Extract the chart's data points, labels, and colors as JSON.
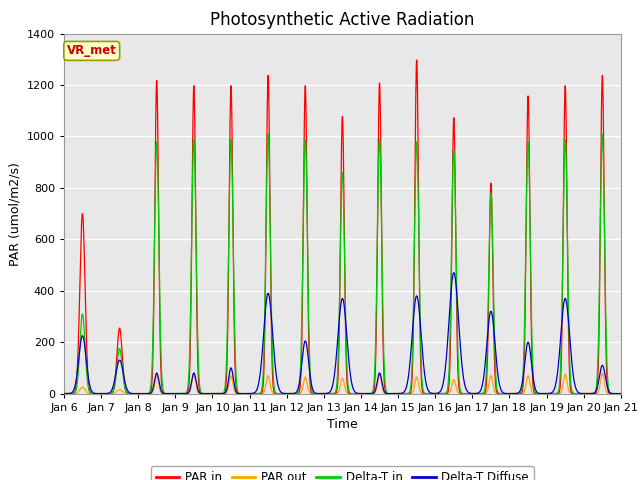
{
  "title": "Photosynthetic Active Radiation",
  "xlabel": "Time",
  "ylabel": "PAR (umol/m2/s)",
  "ylim": [
    0,
    1400
  ],
  "colors": {
    "PAR in": "#ff0000",
    "PAR out": "#ffa500",
    "Delta-T in": "#00cc00",
    "Delta-T Diffuse": "#0000cc"
  },
  "label_box_text": "VR_met",
  "label_box_facecolor": "#ffffcc",
  "label_box_edgecolor": "#999900",
  "title_fontsize": 12,
  "axis_fontsize": 9,
  "tick_fontsize": 8,
  "plot_facecolor": "#e8e8e8",
  "tick_labels": [
    "Jan 6",
    "Jan 7",
    "Jan 8",
    "Jan 9",
    "Jan 10",
    "Jan 11",
    "Jan 12",
    "Jan 13",
    "Jan 14",
    "Jan 15",
    "Jan 16",
    "Jan 17",
    "Jan 18",
    "Jan 19",
    "Jan 20",
    "Jan 21"
  ],
  "days": 15,
  "PAR_in_peaks": [
    700,
    255,
    1220,
    1200,
    1200,
    1240,
    1200,
    1080,
    1210,
    1300,
    1075,
    820,
    1160,
    1200,
    1240
  ],
  "PAR_out_peaks": [
    25,
    15,
    70,
    75,
    70,
    70,
    65,
    60,
    75,
    65,
    55,
    70,
    70,
    75,
    80
  ],
  "DeltaT_peaks": [
    310,
    175,
    980,
    990,
    990,
    1010,
    990,
    860,
    990,
    980,
    950,
    780,
    980,
    990,
    1010
  ],
  "DeltaTD_peaks": [
    225,
    130,
    80,
    80,
    100,
    390,
    205,
    370,
    80,
    380,
    470,
    320,
    200,
    370,
    110
  ],
  "DeltaTD_width": [
    0.1,
    0.1,
    0.06,
    0.06,
    0.06,
    0.12,
    0.09,
    0.12,
    0.06,
    0.12,
    0.13,
    0.11,
    0.09,
    0.12,
    0.08
  ],
  "DeltaT_width": [
    0.07,
    0.07,
    0.06,
    0.06,
    0.06,
    0.06,
    0.06,
    0.06,
    0.06,
    0.06,
    0.06,
    0.06,
    0.06,
    0.06,
    0.06
  ],
  "PAR_width": [
    0.07,
    0.07,
    0.05,
    0.05,
    0.05,
    0.05,
    0.05,
    0.05,
    0.05,
    0.05,
    0.05,
    0.05,
    0.05,
    0.05,
    0.05
  ]
}
